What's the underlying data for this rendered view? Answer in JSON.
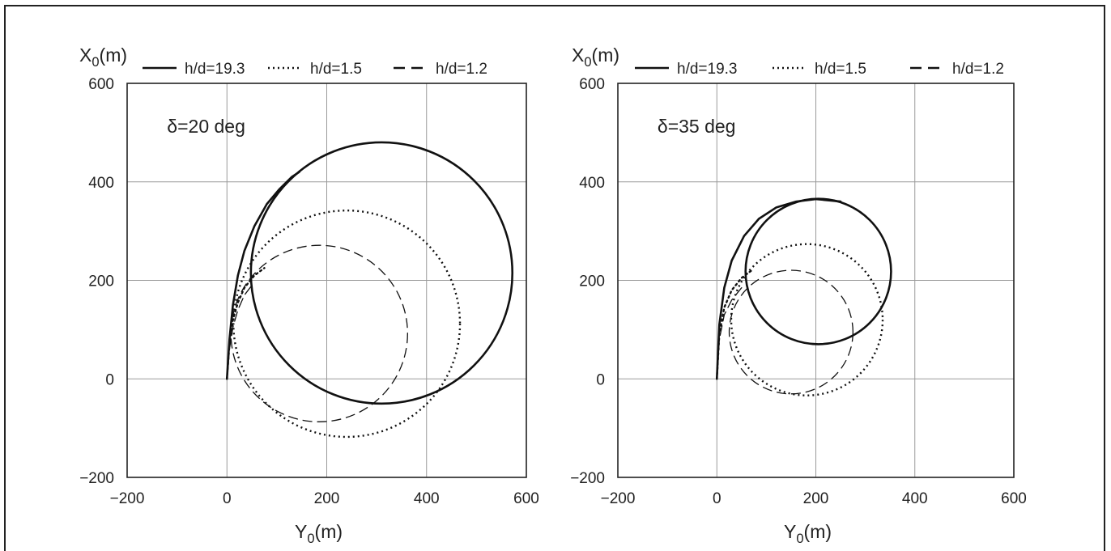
{
  "chart_data": [
    {
      "type": "line",
      "title": "",
      "annotation": "δ=20 deg",
      "xlabel": "Y0(m)",
      "ylabel": "X0(m)",
      "xlim": [
        -200,
        600
      ],
      "ylim": [
        -200,
        600
      ],
      "xticks": [
        -200,
        0,
        200,
        400,
        600
      ],
      "yticks": [
        -200,
        0,
        200,
        400,
        600
      ],
      "grid": true,
      "legend_position": "top",
      "series": [
        {
          "name": "h/d=19.3",
          "style": "solid",
          "x": [
            0,
            5,
            12,
            22,
            35,
            55,
            80,
            105,
            130,
            145
          ],
          "y": [
            0,
            80,
            150,
            210,
            260,
            310,
            355,
            385,
            410,
            420
          ],
          "circle": {
            "cx": 310,
            "cy": 215,
            "r": 262
          }
        },
        {
          "name": "h/d=1.5",
          "style": "dotted",
          "x": [
            0,
            5,
            12,
            22,
            35,
            55,
            75
          ],
          "y": [
            0,
            70,
            120,
            155,
            185,
            210,
            225
          ],
          "circle": {
            "cx": 240,
            "cy": 112,
            "r": 227
          }
        },
        {
          "name": "h/d=1.2",
          "style": "dashed",
          "x": [
            0,
            5,
            12,
            22,
            35,
            50
          ],
          "y": [
            0,
            60,
            105,
            140,
            170,
            190
          ],
          "circle": {
            "cx": 185,
            "cy": 92,
            "r": 177
          }
        }
      ]
    },
    {
      "type": "line",
      "title": "",
      "annotation": "δ=35 deg",
      "xlabel": "Y0(m)",
      "ylabel": "X0(m)",
      "xlim": [
        -200,
        600
      ],
      "ylim": [
        -200,
        600
      ],
      "xticks": [
        -200,
        0,
        200,
        400,
        600
      ],
      "yticks": [
        -200,
        0,
        200,
        400,
        600
      ],
      "grid": true,
      "legend_position": "top",
      "series": [
        {
          "name": "h/d=19.3",
          "style": "solid",
          "x": [
            0,
            5,
            15,
            30,
            55,
            85,
            120,
            160,
            200,
            250
          ],
          "y": [
            0,
            110,
            185,
            240,
            290,
            325,
            348,
            360,
            365,
            360
          ],
          "circle": {
            "cx": 205,
            "cy": 218,
            "r": 147
          }
        },
        {
          "name": "h/d=1.5",
          "style": "dotted",
          "x": [
            0,
            5,
            15,
            30,
            50,
            70
          ],
          "y": [
            0,
            90,
            145,
            180,
            205,
            220
          ],
          "circle": {
            "cx": 182,
            "cy": 120,
            "r": 153
          }
        },
        {
          "name": "h/d=1.2",
          "style": "dashed",
          "x": [
            0,
            5,
            15,
            30,
            50
          ],
          "y": [
            0,
            80,
            130,
            160,
            185
          ],
          "circle": {
            "cx": 150,
            "cy": 95,
            "r": 125
          }
        }
      ]
    }
  ]
}
